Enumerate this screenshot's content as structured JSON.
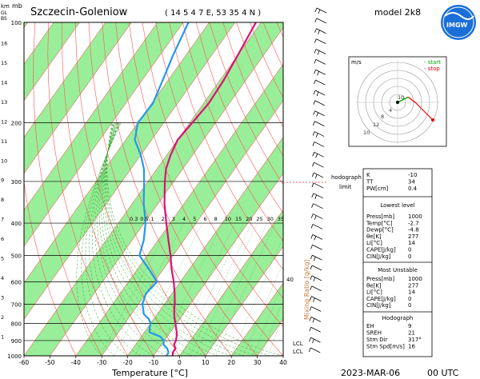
{
  "header": {
    "station": "Szczecin-Goleniow",
    "coords": "( 14 5 4 7  E, 53 35 4  N )",
    "model": "model 2k8",
    "date": "2023-MAR-06",
    "time": "00  UTC"
  },
  "logo_text": "IMGW",
  "chart_data": {
    "type": "skew-t log-p sounding",
    "xlabel": "Temperature [°C]",
    "ylabel_left_top": "mb",
    "ylabel_km": "km",
    "ylabel_km_sub": "GL",
    "ylabel_km_sub2": "BS",
    "x_ticks": [
      -60,
      -50,
      -40,
      -30,
      -20,
      -10,
      0,
      10,
      20,
      30,
      40
    ],
    "x_tick_labels": [
      "-60",
      "-50",
      "-40",
      "-30",
      "-20",
      "-10",
      "0",
      "10",
      "20",
      "30",
      "40"
    ],
    "xlim": [
      -60,
      40
    ],
    "p_levels": [
      100,
      200,
      300,
      400,
      500,
      600,
      700,
      800,
      900,
      1000
    ],
    "p_labels": [
      "100",
      "200",
      "300",
      "400",
      "500",
      "600",
      "700",
      "800",
      "900",
      "1000"
    ],
    "ylim_hpa": [
      1000,
      100
    ],
    "km_ticks": [
      16,
      15,
      14,
      13,
      12,
      11,
      10,
      9,
      8,
      7,
      6,
      5,
      4,
      3,
      2,
      1
    ],
    "km_labels": [
      "16",
      "15",
      "14",
      "13",
      "12",
      "11",
      "10",
      "9",
      "8",
      "7",
      "6",
      "5",
      "4",
      "3",
      "2",
      "1"
    ],
    "mixing_ratio_title": "Mixing Ratio [g/kg]",
    "mixing_ratio_values": [
      0.3,
      0.5,
      1,
      2,
      3,
      4,
      5,
      6,
      8,
      10,
      15,
      20,
      25,
      30,
      35
    ],
    "mixing_ratio_labels": [
      "0.3",
      "0.5",
      "1",
      "2",
      "3",
      "4",
      "5",
      "6",
      "8",
      "10",
      "15",
      "20",
      "25",
      "30",
      "35"
    ],
    "mixing_ratio_extra": "40",
    "lcl_label": "LCL",
    "lcl_label_2": "LCL",
    "temperature_profile": {
      "p": [
        1000,
        975,
        950,
        925,
        900,
        875,
        850,
        825,
        800,
        775,
        750,
        725,
        700,
        650,
        600,
        550,
        500,
        450,
        400,
        350,
        300,
        275,
        250,
        225,
        200,
        175,
        150,
        125,
        100
      ],
      "t": [
        -2.7,
        -3.5,
        -3.6,
        -5.2,
        -5.6,
        -6.4,
        -7.5,
        -9.0,
        -10.4,
        -12.0,
        -13.5,
        -14.8,
        -16.0,
        -19.0,
        -22.5,
        -26.8,
        -31.0,
        -36.0,
        -41.5,
        -47.5,
        -53.5,
        -56.5,
        -58.5,
        -60.0,
        -59.0,
        -58.0,
        -58.5,
        -60.0,
        -62.0
      ]
    },
    "dewpoint_profile": {
      "p": [
        1000,
        975,
        950,
        925,
        900,
        875,
        850,
        825,
        800,
        775,
        750,
        725,
        700,
        650,
        600,
        550,
        500,
        450,
        400,
        350,
        300,
        275,
        250,
        225,
        200,
        175,
        150,
        125,
        100
      ],
      "td": [
        -4.8,
        -5.3,
        -6.8,
        -9.3,
        -10.2,
        -12.8,
        -18.0,
        -19.2,
        -20.0,
        -22.0,
        -25.2,
        -26.8,
        -28.5,
        -30.0,
        -29.0,
        -35.5,
        -43.0,
        -45.5,
        -49.5,
        -55.5,
        -61.5,
        -65.0,
        -70.0,
        -76.5,
        -80.0,
        -79.5,
        -82.0,
        -85.0,
        -88.0
      ]
    },
    "wind_barbs_count": 34,
    "hodograph": {
      "unit_label": "m/s",
      "legend_start": "- start",
      "legend_stop": "- stop",
      "ring_labels": [
        "10",
        "12",
        "8",
        "4",
        "10"
      ],
      "start_color": "#00aa00",
      "stop_color": "#ee0000",
      "points": [
        [
          0,
          0
        ],
        [
          3,
          1.5
        ],
        [
          6,
          3
        ],
        [
          10,
          0
        ],
        [
          15,
          -5
        ],
        [
          20,
          -10
        ]
      ]
    },
    "hodograph_indicator_label": "hodograph",
    "hodograph_indicator_label_2": "limit"
  },
  "indices": {
    "general": [
      {
        "label": "K",
        "value": "-10"
      },
      {
        "label": "TT",
        "value": "34"
      },
      {
        "label": "PW[cm]",
        "value": "0.4"
      }
    ],
    "lowest_title": "Lowest level",
    "lowest": [
      {
        "label": "Press[mb]",
        "value": "1000"
      },
      {
        "label": "Temp[°C]",
        "value": "-2.7"
      },
      {
        "label": "Dewp[°C]",
        "value": "-4.8"
      },
      {
        "label": "θe[K]",
        "value": "277"
      },
      {
        "label": "LI[°C]",
        "value": "14"
      },
      {
        "label": "CAPE[J/kg]",
        "value": "0"
      },
      {
        "label": "CIN[J/kg]",
        "value": "0"
      }
    ],
    "unstable_title": "Most Unstable",
    "unstable": [
      {
        "label": "Press[mb]",
        "value": "1000"
      },
      {
        "label": "θe[K]",
        "value": "277"
      },
      {
        "label": "LI[°C]",
        "value": "14"
      },
      {
        "label": "CAPE[J/kg]",
        "value": "0"
      },
      {
        "label": "CIN[J/kg]",
        "value": "0"
      }
    ],
    "hodo_title": "Hodograph",
    "hodo": [
      {
        "label": "EH",
        "value": "9"
      },
      {
        "label": "SREH",
        "value": "21"
      },
      {
        "label": "Stm Dir",
        "value": "317°"
      },
      {
        "label": "Stm Spd[m/s]",
        "value": "16"
      }
    ]
  },
  "colors": {
    "green_band": "#99ee99",
    "isotherm": "#ee3333",
    "dry_adiabat": "#ff5555",
    "moist_adiabat": "#33aa33",
    "mixing_ratio": "#44aa44",
    "temperature": "#dd1177",
    "dewpoint": "#2299ee",
    "isobar": "#000000"
  }
}
